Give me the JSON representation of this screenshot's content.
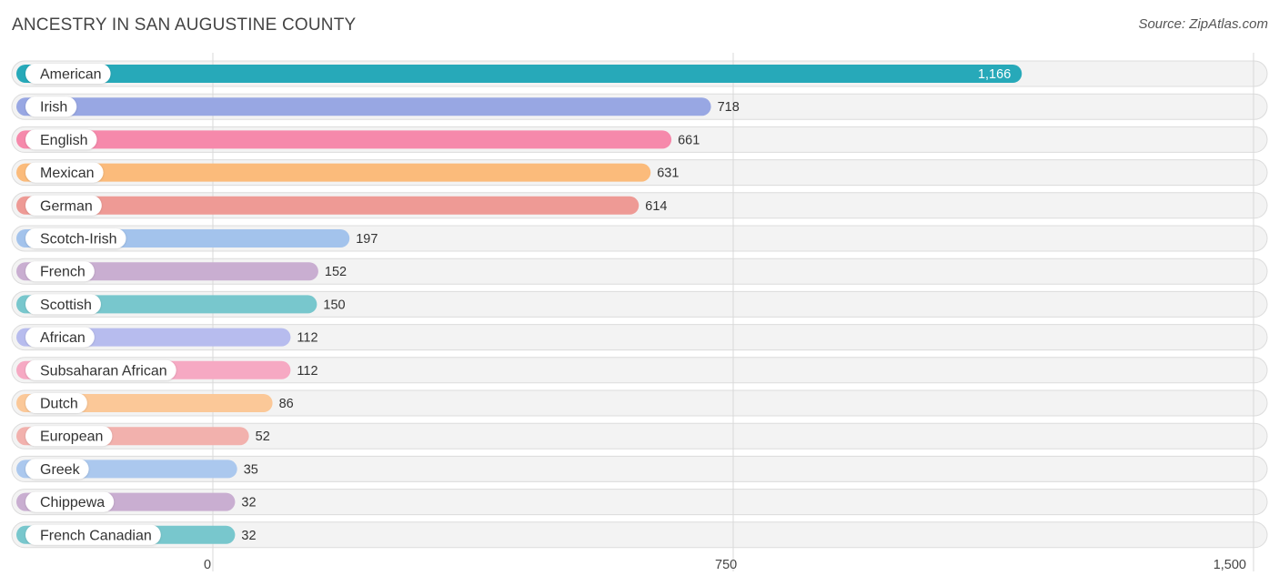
{
  "header": {
    "title": "ANCESTRY IN SAN AUGUSTINE COUNTY",
    "source": "Source: ZipAtlas.com"
  },
  "chart_data": {
    "type": "bar",
    "orientation": "horizontal",
    "title": "ANCESTRY IN SAN AUGUSTINE COUNTY",
    "categories": [
      "American",
      "Irish",
      "English",
      "Mexican",
      "German",
      "Scotch-Irish",
      "French",
      "Scottish",
      "African",
      "Subsaharan African",
      "Dutch",
      "European",
      "Greek",
      "Chippewa",
      "French Canadian"
    ],
    "values": [
      1166,
      718,
      661,
      631,
      614,
      197,
      152,
      150,
      112,
      112,
      86,
      52,
      35,
      32,
      32
    ],
    "value_labels": [
      "1,166",
      "718",
      "661",
      "631",
      "614",
      "197",
      "152",
      "150",
      "112",
      "112",
      "86",
      "52",
      "35",
      "32",
      "32"
    ],
    "colors": [
      "#27a9b9",
      "#98a7e3",
      "#f689ab",
      "#fbbb7b",
      "#ee9a95",
      "#a3c3ec",
      "#c9aed1",
      "#78c7cd",
      "#b7bcee",
      "#f6a9c3",
      "#fbc898",
      "#f2b1ad",
      "#abc8ee",
      "#c9aed1",
      "#78c7cd"
    ],
    "xlim": [
      0,
      1500
    ],
    "ticks": [
      0,
      750,
      1500
    ],
    "tick_labels": [
      "0",
      "750",
      "1,500"
    ],
    "grid": true
  }
}
